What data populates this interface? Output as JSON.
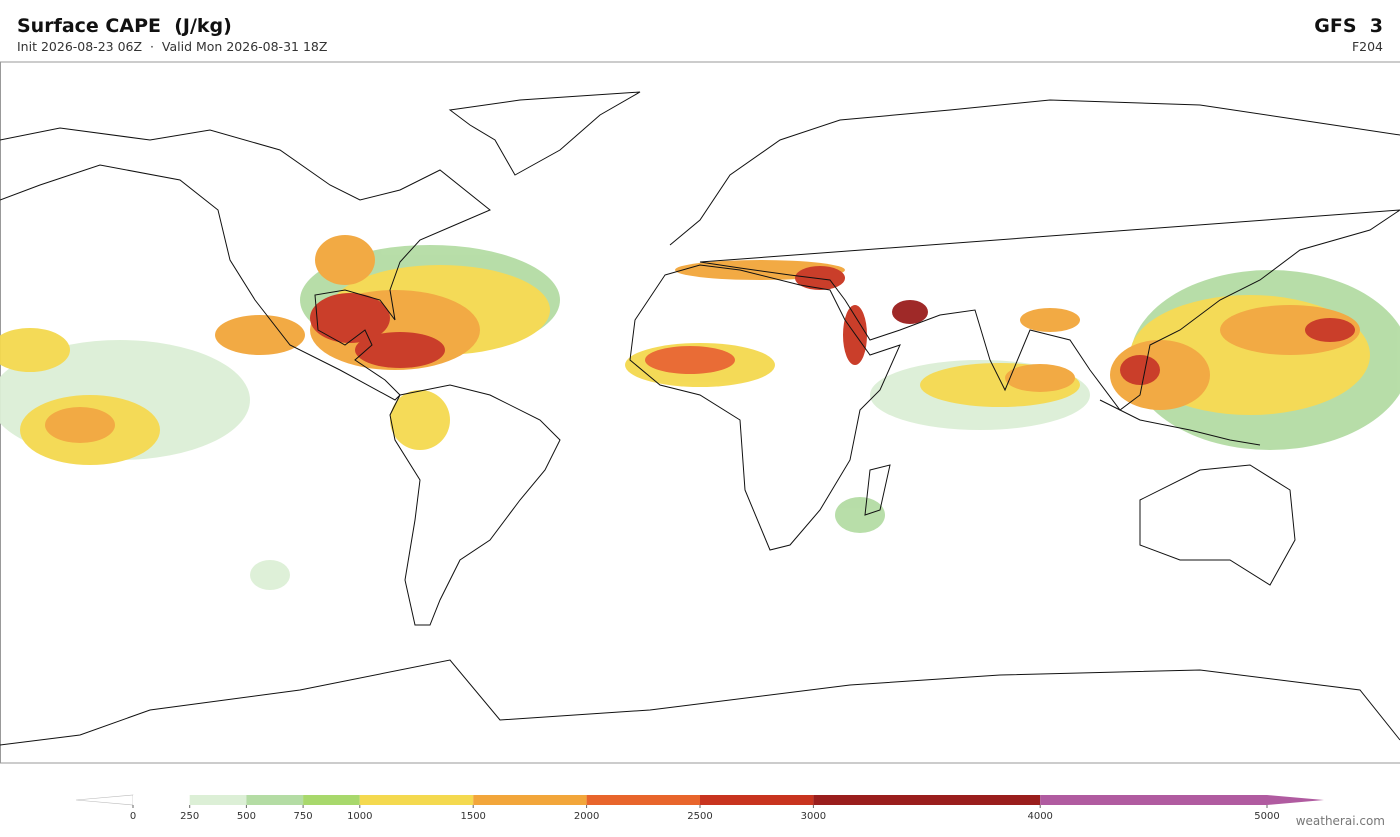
{
  "header": {
    "title": "Surface CAPE  (J/kg)",
    "subtitle": "Init 2026-08-23 06Z  ·  Valid Mon 2026-08-31 18Z",
    "model": "GFS  3",
    "forecast_hour": "F204"
  },
  "colorbar": {
    "lim": [
      0,
      5000
    ],
    "ticks": [
      0,
      250,
      500,
      750,
      1000,
      1500,
      2000,
      2500,
      3000,
      4000,
      5000
    ],
    "colors": [
      "#ffffff",
      "#dcefd6",
      "#b4dca4",
      "#a8d86c",
      "#f4d94f",
      "#f2a63b",
      "#e8652c",
      "#c8341f",
      "#9a1e1d",
      "#b05ba0"
    ]
  },
  "footer": {
    "credit": "weatherai.com"
  }
}
